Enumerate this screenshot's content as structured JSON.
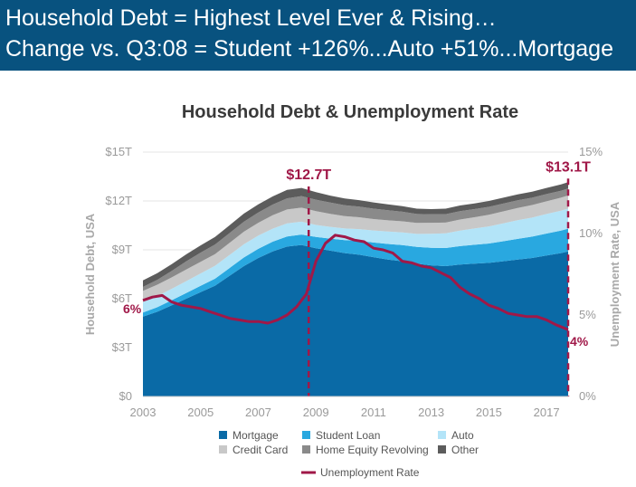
{
  "header": {
    "line1": "Household Debt = Highest Level Ever & Rising…",
    "line2": "Change vs. Q3:08 = Student +126%...Auto +51%...Mortgage"
  },
  "chart_data": {
    "type": "area",
    "title": "Household Debt & Unemployment Rate",
    "ylabel": "Household Debt, USA",
    "y2label": "Unemployment Rate, USA",
    "xlim": [
      2003,
      2017.75
    ],
    "ylim": [
      0,
      15
    ],
    "y2lim": [
      0,
      15
    ],
    "xticks": [
      "2003",
      "2005",
      "2007",
      "2009",
      "2011",
      "2013",
      "2015",
      "2017"
    ],
    "yticks": [
      "$0",
      "$3T",
      "$6T",
      "$9T",
      "$12T",
      "$15T"
    ],
    "y2ticks": [
      "0%",
      "5%",
      "10%",
      "15%"
    ],
    "x": [
      2003,
      2003.5,
      2004,
      2004.5,
      2005,
      2005.5,
      2006,
      2006.5,
      2007,
      2007.5,
      2008,
      2008.5,
      2009,
      2009.5,
      2010,
      2010.5,
      2011,
      2011.5,
      2012,
      2012.5,
      2013,
      2013.5,
      2014,
      2014.5,
      2015,
      2015.5,
      2016,
      2016.5,
      2017,
      2017.5,
      2017.75
    ],
    "series": [
      {
        "name": "Mortgage",
        "color": "#0a6aa6",
        "values": [
          4.9,
          5.2,
          5.6,
          6.0,
          6.4,
          6.8,
          7.4,
          8.0,
          8.5,
          8.9,
          9.2,
          9.3,
          9.1,
          8.95,
          8.8,
          8.7,
          8.55,
          8.4,
          8.3,
          8.15,
          8.05,
          8.0,
          8.1,
          8.15,
          8.2,
          8.3,
          8.4,
          8.5,
          8.65,
          8.8,
          8.9
        ]
      },
      {
        "name": "Student Loan",
        "color": "#29a8e0",
        "values": [
          0.25,
          0.28,
          0.31,
          0.35,
          0.39,
          0.43,
          0.48,
          0.53,
          0.56,
          0.6,
          0.62,
          0.64,
          0.69,
          0.74,
          0.8,
          0.85,
          0.9,
          0.96,
          0.99,
          1.03,
          1.08,
          1.11,
          1.13,
          1.16,
          1.19,
          1.23,
          1.27,
          1.31,
          1.35,
          1.38,
          1.4
        ]
      },
      {
        "name": "Auto",
        "color": "#b3e4f8",
        "values": [
          0.64,
          0.68,
          0.7,
          0.73,
          0.76,
          0.79,
          0.8,
          0.81,
          0.81,
          0.8,
          0.81,
          0.79,
          0.74,
          0.72,
          0.71,
          0.72,
          0.74,
          0.76,
          0.78,
          0.8,
          0.86,
          0.9,
          0.95,
          1.0,
          1.05,
          1.1,
          1.15,
          1.17,
          1.2,
          1.22,
          1.23
        ]
      },
      {
        "name": "Credit Card",
        "color": "#c8c8c8",
        "values": [
          0.69,
          0.7,
          0.7,
          0.71,
          0.71,
          0.72,
          0.74,
          0.77,
          0.79,
          0.82,
          0.85,
          0.86,
          0.84,
          0.8,
          0.76,
          0.73,
          0.7,
          0.69,
          0.68,
          0.67,
          0.67,
          0.66,
          0.68,
          0.69,
          0.71,
          0.73,
          0.75,
          0.77,
          0.78,
          0.8,
          0.81
        ]
      },
      {
        "name": "Home Equity Revolving",
        "color": "#8a8a8a",
        "values": [
          0.24,
          0.3,
          0.4,
          0.5,
          0.57,
          0.59,
          0.6,
          0.61,
          0.63,
          0.66,
          0.68,
          0.71,
          0.71,
          0.69,
          0.67,
          0.65,
          0.64,
          0.62,
          0.59,
          0.55,
          0.53,
          0.52,
          0.51,
          0.5,
          0.49,
          0.48,
          0.47,
          0.45,
          0.44,
          0.43,
          0.42
        ]
      },
      {
        "name": "Other",
        "color": "#5c5c5c",
        "values": [
          0.4,
          0.41,
          0.42,
          0.43,
          0.44,
          0.46,
          0.48,
          0.5,
          0.5,
          0.5,
          0.52,
          0.5,
          0.46,
          0.43,
          0.41,
          0.4,
          0.38,
          0.36,
          0.34,
          0.33,
          0.31,
          0.34,
          0.35,
          0.35,
          0.36,
          0.36,
          0.36,
          0.37,
          0.38,
          0.38,
          0.39
        ]
      }
    ],
    "unemployment": {
      "name": "Unemployment Rate",
      "color": "#a01848",
      "x": [
        2003,
        2003.33,
        2003.67,
        2004,
        2004.33,
        2004.67,
        2005,
        2005.33,
        2005.67,
        2006,
        2006.33,
        2006.67,
        2007,
        2007.33,
        2007.67,
        2008,
        2008.33,
        2008.67,
        2009,
        2009.33,
        2009.67,
        2010,
        2010.33,
        2010.67,
        2011,
        2011.33,
        2011.67,
        2012,
        2012.33,
        2012.67,
        2013,
        2013.33,
        2013.67,
        2014,
        2014.33,
        2014.67,
        2015,
        2015.33,
        2015.67,
        2016,
        2016.33,
        2016.67,
        2017,
        2017.33,
        2017.75
      ],
      "values": [
        5.9,
        6.1,
        6.2,
        5.8,
        5.6,
        5.5,
        5.4,
        5.2,
        5.0,
        4.8,
        4.7,
        4.6,
        4.6,
        4.5,
        4.7,
        5.0,
        5.5,
        6.3,
        8.3,
        9.4,
        9.9,
        9.8,
        9.6,
        9.5,
        9.1,
        9.0,
        8.8,
        8.3,
        8.2,
        8.0,
        7.9,
        7.6,
        7.3,
        6.7,
        6.3,
        6.0,
        5.6,
        5.4,
        5.1,
        5.0,
        4.9,
        4.9,
        4.7,
        4.4,
        4.1
      ]
    },
    "annotations": [
      {
        "label": "$12.7T",
        "x": 2008.75
      },
      {
        "label": "$13.1T",
        "x": 2017.75
      }
    ],
    "start_label": "6%",
    "end_label": "4%",
    "legend_position": "bottom"
  }
}
